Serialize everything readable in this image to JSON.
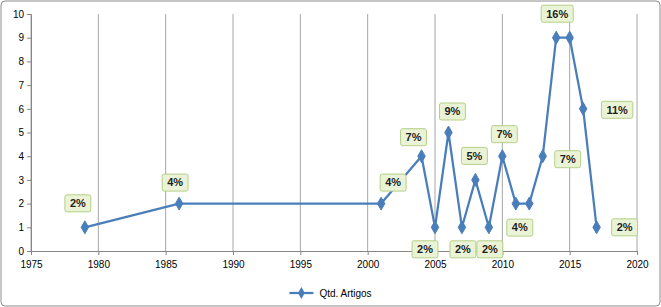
{
  "chart_data": {
    "type": "line",
    "x": [
      1979,
      1986,
      2001,
      2004,
      2005,
      2006,
      2007,
      2008,
      2009,
      2010,
      2011,
      2012,
      2013,
      2014,
      2015,
      2016,
      2017
    ],
    "series": [
      {
        "name": "Qtd. Artigos",
        "color": "#4a7ebb",
        "marker": "diamond",
        "values": [
          1,
          2,
          2,
          4,
          1,
          5,
          1,
          3,
          1,
          4,
          2,
          2,
          4,
          9,
          9,
          6,
          1
        ],
        "annotations": [
          "2%",
          "4%",
          "4%",
          "7%",
          "2%",
          "9%",
          "2%",
          "5%",
          "2%",
          "7%",
          "4%",
          null,
          "7%",
          "16%",
          null,
          "11%",
          "2%"
        ]
      }
    ],
    "xlim": [
      1975,
      2020
    ],
    "xticks": [
      1975,
      1980,
      1985,
      1990,
      1995,
      2000,
      2005,
      2010,
      2015,
      2020
    ],
    "ylim": [
      0,
      10
    ],
    "yticks": [
      0,
      1,
      2,
      3,
      4,
      5,
      6,
      7,
      8,
      9,
      10
    ],
    "grid": "x",
    "legend": "bottom"
  }
}
